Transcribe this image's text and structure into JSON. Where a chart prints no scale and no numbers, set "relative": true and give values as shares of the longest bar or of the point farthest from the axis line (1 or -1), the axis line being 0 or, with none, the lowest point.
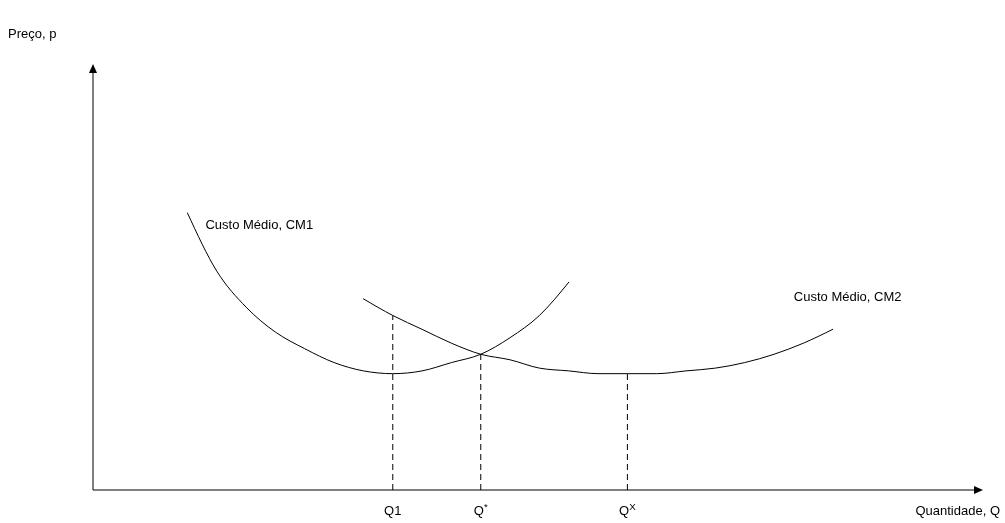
{
  "chart_data": {
    "type": "line",
    "relative": true,
    "xlabel": "Quantidade, Q",
    "annotations": [
      "Preço, p"
    ],
    "categories": [
      null,
      null,
      null,
      null,
      null,
      null,
      null,
      null,
      null,
      null,
      "Q1",
      null,
      null,
      "Q$^{*}$",
      null,
      null,
      null,
      null,
      "Q$^{X}$",
      null,
      null,
      null,
      null,
      null,
      null,
      null,
      null,
      null,
      null,
      null
    ],
    "line_style": "solid",
    "marker": "none",
    "grid": false,
    "ref_lines": [
      {
        "axis": "x",
        "value": "Q1",
        "line_style": "dashed"
      },
      {
        "axis": "x",
        "value": "Q$^{*}$",
        "line_style": "dashed"
      },
      {
        "axis": "x",
        "value": "Q$^{X}$",
        "line_style": "dashed"
      }
    ],
    "series": [
      {
        "name": "Custo Médio, CM1",
        "color": "#000000",
        "values": [
          null,
          null,
          null,
          1,
          0.79,
          0.66,
          0.57,
          0.51,
          0.46,
          0.43,
          0.42,
          0.43,
          0.46,
          0.49,
          0.55,
          0.63,
          0.75,
          null,
          null,
          null,
          null,
          null,
          null,
          null,
          null,
          null,
          null,
          null,
          null,
          null
        ]
      },
      {
        "name": "Custo Médio, CM2",
        "color": "#000000",
        "values": [
          null,
          null,
          null,
          null,
          null,
          null,
          null,
          null,
          null,
          0.69,
          0.63,
          0.58,
          0.53,
          0.49,
          0.47,
          0.44,
          0.43,
          0.42,
          0.42,
          0.42,
          0.43,
          0.44,
          0.46,
          0.49,
          0.53,
          0.58,
          null,
          null,
          null,
          null
        ]
      }
    ]
  }
}
